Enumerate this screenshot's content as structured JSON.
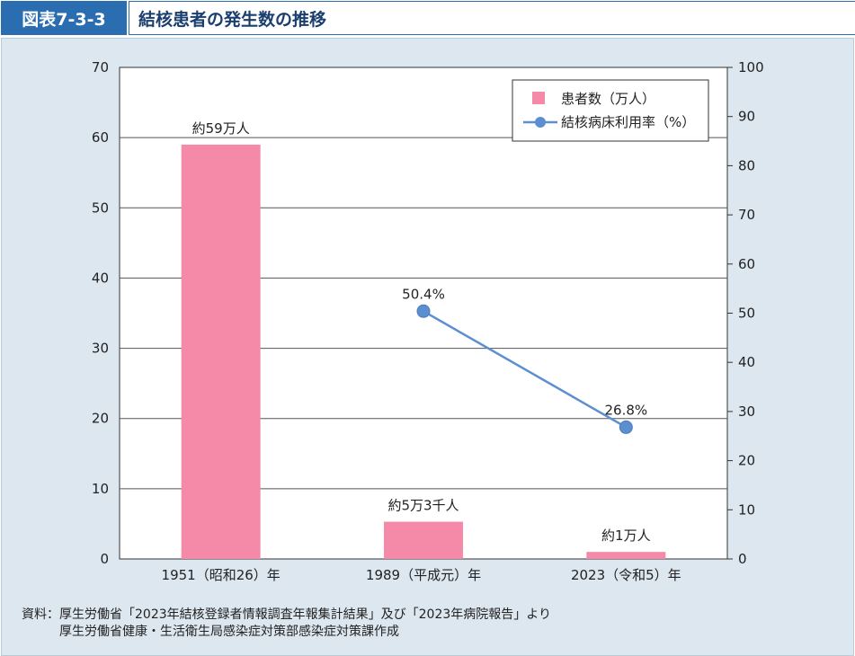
{
  "header": {
    "figure_no": "図表7-3-3",
    "title": "結核患者の発生数の推移"
  },
  "chart_data": {
    "type": "bar+line",
    "categories": [
      "1951（昭和26）年",
      "1989（平成元）年",
      "2023（令和5）年"
    ],
    "series": [
      {
        "name": "患者数（万人）",
        "type": "bar",
        "axis": "left",
        "values": [
          59,
          5.3,
          1
        ],
        "labels": [
          "約59万人",
          "約5万3千人",
          "約1万人"
        ],
        "color": "#f48aa8"
      },
      {
        "name": "結核病床利用率（%）",
        "type": "line",
        "axis": "right",
        "values": [
          null,
          50.4,
          26.8
        ],
        "labels": [
          "",
          "50.4%",
          "26.8%"
        ],
        "color": "#5b8fd0"
      }
    ],
    "y_left": {
      "ylim": [
        0,
        70
      ],
      "ticks": [
        0,
        10,
        20,
        30,
        40,
        50,
        60,
        70
      ]
    },
    "y_right": {
      "ylim": [
        0,
        100
      ],
      "ticks": [
        0,
        10,
        20,
        30,
        40,
        50,
        60,
        70,
        80,
        90,
        100
      ]
    },
    "grid": true,
    "legend_position": "top-right"
  },
  "source": {
    "line1": "資料：厚生労働省「2023年結核登録者情報調査年報集計結果」及び「2023年病院報告」より",
    "line2": "厚生労働省健康・生活衛生局感染症対策部感染症対策課作成"
  }
}
